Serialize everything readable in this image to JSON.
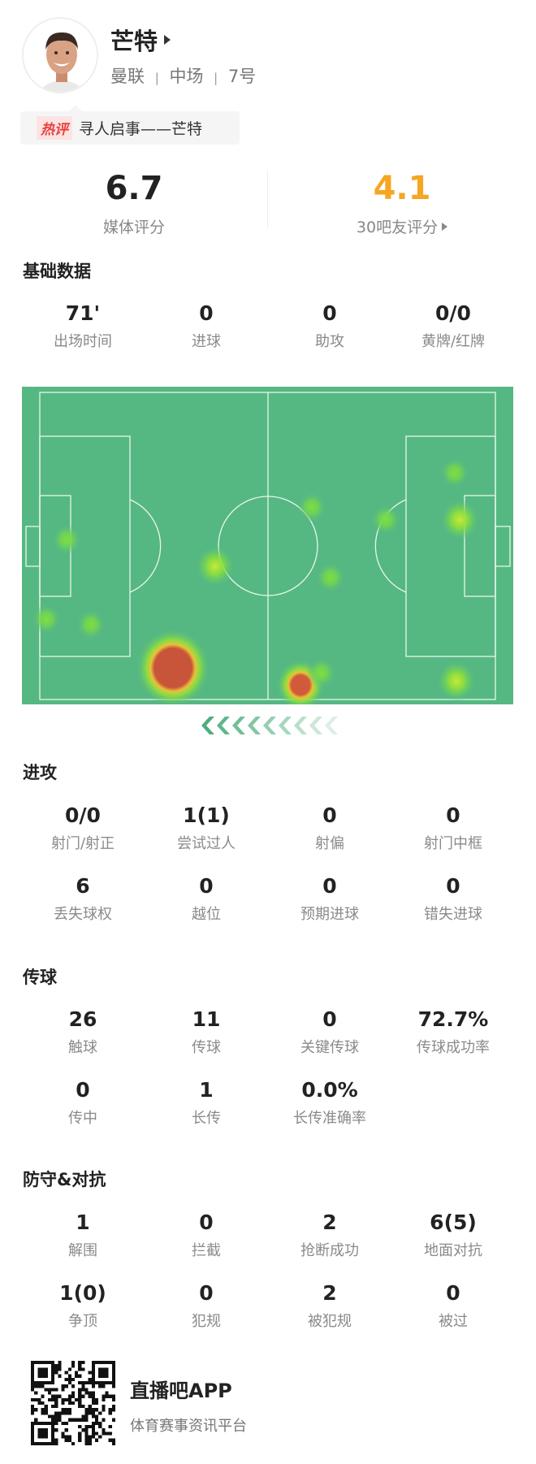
{
  "player": {
    "name": "芒特",
    "team": "曼联",
    "position": "中场",
    "number": "7号",
    "separator": "|"
  },
  "hot_comment": {
    "badge": "热评",
    "text": "寻人启事——芒特"
  },
  "ratings": {
    "media": {
      "value": "6.7",
      "label": "媒体评分"
    },
    "fans": {
      "value": "4.1",
      "label": "30吧友评分",
      "color": "#f5a623"
    }
  },
  "sections": {
    "basic": {
      "title": "基础数据",
      "stats": [
        {
          "value": "71'",
          "label": "出场时间"
        },
        {
          "value": "0",
          "label": "进球"
        },
        {
          "value": "0",
          "label": "助攻"
        },
        {
          "value": "0/0",
          "label": "黄牌/红牌"
        }
      ]
    },
    "attack": {
      "title": "进攻",
      "stats": [
        {
          "value": "0/0",
          "label": "射门/射正"
        },
        {
          "value": "1(1)",
          "label": "尝试过人"
        },
        {
          "value": "0",
          "label": "射偏"
        },
        {
          "value": "0",
          "label": "射门中框"
        },
        {
          "value": "6",
          "label": "丢失球权"
        },
        {
          "value": "0",
          "label": "越位"
        },
        {
          "value": "0",
          "label": "预期进球"
        },
        {
          "value": "0",
          "label": "错失进球"
        }
      ]
    },
    "passing": {
      "title": "传球",
      "stats": [
        {
          "value": "26",
          "label": "触球"
        },
        {
          "value": "11",
          "label": "传球"
        },
        {
          "value": "0",
          "label": "关键传球"
        },
        {
          "value": "72.7%",
          "label": "传球成功率"
        },
        {
          "value": "0",
          "label": "传中"
        },
        {
          "value": "1",
          "label": "长传"
        },
        {
          "value": "0.0%",
          "label": "长传准确率"
        }
      ]
    },
    "defense": {
      "title": "防守&对抗",
      "stats": [
        {
          "value": "1",
          "label": "解围"
        },
        {
          "value": "0",
          "label": "拦截"
        },
        {
          "value": "2",
          "label": "抢断成功"
        },
        {
          "value": "6(5)",
          "label": "地面对抗"
        },
        {
          "value": "1(0)",
          "label": "争顶"
        },
        {
          "value": "0",
          "label": "犯规"
        },
        {
          "value": "2",
          "label": "被犯规"
        },
        {
          "value": "0",
          "label": "被过"
        }
      ]
    }
  },
  "heatmap": {
    "pitch_color": "#55b882",
    "line_color": "#e8f5ec",
    "attack_direction": "left",
    "spots_pitch_meters": [
      {
        "x": 6.2,
        "y": 32.6,
        "intensity": 0.35
      },
      {
        "x": 40.4,
        "y": 38.5,
        "intensity": 0.5
      },
      {
        "x": 62.7,
        "y": 25.4,
        "intensity": 0.3
      },
      {
        "x": 79.7,
        "y": 28.2,
        "intensity": 0.3
      },
      {
        "x": 95.6,
        "y": 17.8,
        "intensity": 0.3
      },
      {
        "x": 96.8,
        "y": 28.2,
        "intensity": 0.5
      },
      {
        "x": 67.0,
        "y": 41.0,
        "intensity": 0.3
      },
      {
        "x": 1.5,
        "y": 50.2,
        "intensity": 0.35
      },
      {
        "x": 11.8,
        "y": 51.4,
        "intensity": 0.3
      },
      {
        "x": 30.7,
        "y": 61.0,
        "intensity": 1.0
      },
      {
        "x": 60.1,
        "y": 64.8,
        "intensity": 0.8
      },
      {
        "x": 64.9,
        "y": 62.1,
        "intensity": 0.3
      },
      {
        "x": 96.0,
        "y": 63.9,
        "intensity": 0.5
      }
    ]
  },
  "footer": {
    "app_name": "直播吧APP",
    "tagline": "体育赛事资讯平台"
  }
}
